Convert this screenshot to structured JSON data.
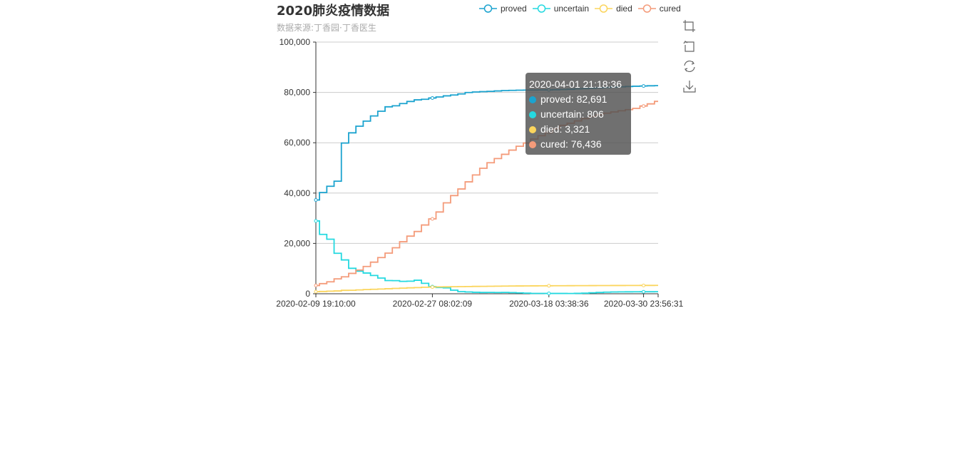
{
  "chart_data": {
    "type": "line",
    "step": true,
    "title": "2020肺炎疫情数据",
    "subtitle": "数据来源:丁香园·丁香医生",
    "xlabel": "",
    "ylabel": "",
    "ylim": [
      0,
      100000
    ],
    "y_ticks": [
      "0",
      "20,000",
      "40,000",
      "60,000",
      "80,000",
      "100,000"
    ],
    "x_ticks": [
      "2020-02-09 19:10:00",
      "2020-02-27 08:02:09",
      "2020-03-18 03:38:36",
      "2020-03-30 23:56:31"
    ],
    "grid": true,
    "legend_position": "top-right",
    "series": [
      {
        "name": "proved",
        "color": "#1ba3cf",
        "values": [
          37251,
          40235,
          42708,
          44730,
          59882,
          63932,
          66580,
          68584,
          70635,
          72528,
          74280,
          74675,
          75569,
          76392,
          77041,
          77262,
          77779,
          78190,
          78630,
          78959,
          79394,
          79968,
          80174,
          80303,
          80424,
          80581,
          80734,
          80815,
          80868,
          80905,
          80932,
          80981,
          81008,
          81077,
          81171,
          81250,
          81401,
          81498,
          81661,
          81804,
          81957,
          82079,
          82230,
          82341,
          82447,
          82545,
          82631,
          82691
        ]
      },
      {
        "name": "uncertain",
        "color": "#24d9e0",
        "values": [
          28942,
          23589,
          21675,
          16067,
          13435,
          10109,
          8969,
          8228,
          7264,
          6242,
          5248,
          5206,
          4922,
          5000,
          5365,
          4148,
          2824,
          2491,
          2358,
          1418,
          851,
          715,
          587,
          520,
          522,
          502,
          533,
          458,
          349,
          253,
          147,
          134,
          128,
          119,
          122,
          106,
          160,
          236,
          365,
          519,
          627,
          709,
          735,
          764,
          784,
          796,
          803,
          806
        ]
      },
      {
        "name": "died",
        "color": "#fbd55d",
        "values": [
          812,
          910,
          1017,
          1114,
          1368,
          1381,
          1524,
          1666,
          1772,
          1870,
          2006,
          2121,
          2239,
          2348,
          2445,
          2595,
          2666,
          2718,
          2747,
          2791,
          2838,
          2873,
          2915,
          2946,
          2984,
          3015,
          3045,
          3073,
          3100,
          3123,
          3140,
          3162,
          3173,
          3180,
          3194,
          3204,
          3218,
          3231,
          3242,
          3250,
          3263,
          3271,
          3278,
          3286,
          3296,
          3305,
          3314,
          3321
        ]
      },
      {
        "name": "cured",
        "color": "#f49b7a",
        "values": [
          3281,
          4019,
          4740,
          5911,
          6723,
          8096,
          9419,
          10844,
          12552,
          14376,
          16155,
          18264,
          20659,
          22888,
          24734,
          27323,
          29745,
          32495,
          36117,
          39002,
          41625,
          44462,
          47204,
          49856,
          52045,
          53726,
          55404,
          57065,
          58600,
          59897,
          61475,
          62793,
          64111,
          65541,
          66911,
          67749,
          68679,
          69601,
          70420,
          71150,
          71740,
          72244,
          72703,
          73159,
          73650,
          74588,
          75448,
          76436
        ]
      }
    ],
    "tooltip": {
      "time": "2020-04-01 21:18:36",
      "rows": [
        {
          "label": "proved: 82,691",
          "color": "#1ba3cf"
        },
        {
          "label": "uncertain: 806",
          "color": "#24d9e0"
        },
        {
          "label": "died: 3,321",
          "color": "#fbd55d"
        },
        {
          "label": "cured: 76,436",
          "color": "#f49b7a"
        }
      ]
    }
  },
  "toolbox": {
    "icons": [
      "zoom-icon",
      "zoom-reset-icon",
      "restore-icon",
      "save-image-icon"
    ]
  }
}
